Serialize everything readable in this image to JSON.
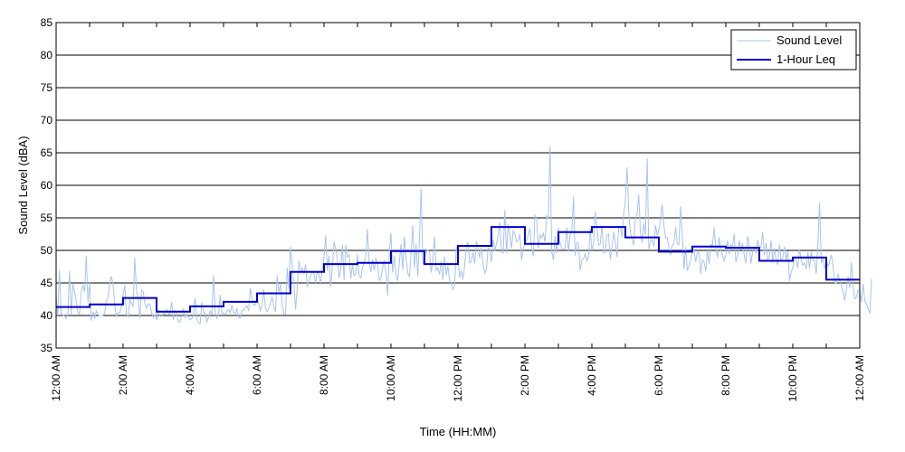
{
  "chart_data": {
    "type": "line",
    "title": "",
    "xlabel": "Time (HH:MM)",
    "ylabel": "Sound Level (dBA)",
    "xlim": [
      0,
      24
    ],
    "ylim": [
      35,
      85
    ],
    "y_ticks": [
      35,
      40,
      45,
      50,
      55,
      60,
      65,
      70,
      75,
      80,
      85
    ],
    "x_ticks": [
      0,
      2,
      4,
      6,
      8,
      10,
      12,
      14,
      16,
      18,
      20,
      22,
      24
    ],
    "x_tick_labels": [
      "12:00 AM",
      "2:00 AM",
      "4:00 AM",
      "6:00 AM",
      "8:00 AM",
      "10:00 AM",
      "12:00 PM",
      "2:00 PM",
      "4:00 PM",
      "6:00 PM",
      "8:00 PM",
      "10:00 PM",
      "12:00 AM"
    ],
    "grid": "horizontal",
    "legend_position": "top-right",
    "series": [
      {
        "name": "Sound Level",
        "color": "#a8c4f0",
        "x_step_hours": 0.05,
        "values": [
          43.1,
          39.8,
          47.0,
          40.3,
          40.1,
          39.9,
          39.5,
          40.3,
          46.8,
          40.2,
          44.8,
          43.7,
          42.2,
          40.5,
          40.2,
          43.6,
          44.7,
          43.6,
          49.2,
          42.0,
          45.1,
          39.2,
          40.6,
          39.5,
          40.7,
          40.1,
          40.0,
          40.0,
          40.0,
          40.4,
          42.3,
          42.7,
          44.9,
          46.0,
          44.9,
          41.5,
          39.9,
          40.4,
          40.4,
          41.4,
          43.2,
          44.6,
          40.3,
          39.8,
          42.4,
          41.8,
          41.4,
          48.9,
          43.8,
          42.7,
          39.6,
          43.9,
          43.7,
          41.8,
          41.1,
          41.8,
          41.7,
          40.5,
          39.7,
          40.2,
          39.3,
          40.9,
          39.9,
          39.9,
          40.4,
          40.2,
          40.9,
          40.4,
          40.1,
          42.1,
          39.3,
          40.7,
          40.4,
          39.0,
          39.0,
          40.0,
          41.1,
          39.7,
          40.2,
          39.7,
          39.3,
          39.5,
          40.0,
          42.7,
          39.5,
          38.9,
          38.7,
          42.0,
          40.5,
          40.4,
          39.0,
          39.7,
          40.7,
          40.2,
          46.2,
          40.7,
          39.6,
          40.1,
          43.2,
          40.3,
          40.4,
          40.1,
          40.6,
          40.9,
          40.4,
          41.6,
          40.5,
          40.3,
          41.1,
          39.7,
          39.6,
          40.8,
          40.8,
          41.3,
          41.5,
          40.7,
          44.2,
          42.7,
          41.6,
          41.6,
          43.1,
          41.7,
          40.7,
          41.6,
          44.0,
          41.2,
          40.6,
          41.2,
          41.9,
          42.9,
          41.4,
          40.6,
          46.1,
          43.6,
          44.8,
          41.6,
          40.3,
          40.2,
          47.3,
          44.1,
          50.6,
          47.5,
          45.0,
          40.9,
          44.1,
          48.4,
          46.5,
          47.3,
          46.4,
          47.8,
          44.4,
          45.3,
          46.0,
          46.8,
          46.4,
          45.0,
          46.8,
          46.3,
          45.0,
          47.2,
          49.0,
          52.3,
          46.9,
          49.2,
          44.4,
          47.6,
          51.4,
          50.2,
          48.6,
          45.8,
          47.2,
          50.9,
          45.4,
          50.8,
          49.0,
          49.3,
          45.7,
          47.8,
          46.1,
          46.4,
          49.4,
          46.1,
          45.8,
          47.4,
          48.2,
          49.2,
          53.3,
          48.1,
          46.7,
          48.6,
          46.9,
          48.8,
          47.9,
          45.4,
          45.8,
          47.3,
          48.5,
          46.5,
          43.0,
          49.8,
          52.7,
          46.6,
          49.2,
          46.2,
          45.3,
          48.2,
          51.0,
          47.0,
          52.1,
          48.7,
          46.6,
          45.9,
          49.7,
          53.8,
          47.3,
          51.0,
          46.0,
          52.0,
          59.5,
          47.9,
          48.9,
          49.7,
          50.1,
          49.7,
          46.6,
          48.5,
          52.1,
          46.9,
          47.3,
          46.3,
          48.4,
          45.5,
          49.1,
          46.2,
          47.6,
          45.4,
          45.0,
          44.0,
          44.5,
          50.6,
          49.4,
          45.8,
          46.9,
          45.5,
          47.6,
          50.8,
          51.2,
          48.1,
          48.3,
          49.7,
          48.0,
          51.4,
          50.3,
          48.9,
          50.5,
          47.8,
          46.5,
          47.0,
          50.4,
          50.2,
          48.2,
          51.7,
          49.9,
          51.1,
          52.3,
          54.3,
          49.7,
          49.6,
          56.2,
          49.5,
          54.0,
          52.5,
          50.3,
          53.0,
          52.5,
          51.3,
          51.6,
          52.5,
          48.5,
          50.2,
          51.2,
          51.6,
          52.3,
          53.4,
          50.5,
          49.1,
          55.4,
          54.9,
          50.3,
          52.3,
          51.9,
          52.6,
          51.3,
          55.3,
          54.8,
          66.0,
          49.8,
          48.5,
          52.2,
          49.6,
          53.5,
          51.1,
          50.3,
          50.1,
          50.3,
          53.5,
          49.8,
          52.4,
          52.9,
          58.3,
          49.2,
          51.2,
          51.0,
          46.9,
          48.6,
          48.7,
          49.5,
          48.4,
          49.1,
          53.3,
          50.0,
          51.2,
          55.9,
          53.9,
          50.8,
          51.0,
          53.9,
          49.6,
          49.7,
          52.3,
          52.5,
          48.6,
          50.4,
          52.8,
          51.3,
          49.0,
          53.6,
          53.7,
          52.0,
          55.4,
          57.8,
          62.8,
          56.0,
          52.8,
          51.7,
          50.8,
          55.1,
          55.6,
          58.6,
          52.8,
          51.2,
          54.2,
          52.4,
          64.2,
          50.2,
          51.4,
          51.7,
          50.6,
          53.9,
          52.4,
          53.0,
          54.9,
          57.1,
          53.9,
          51.9,
          52.0,
          50.3,
          49.3,
          50.8,
          51.0,
          53.6,
          51.0,
          50.9,
          56.8,
          52.4,
          47.1,
          50.5,
          46.9,
          47.6,
          48.6,
          49.8,
          50.1,
          48.2,
          49.7,
          49.6,
          46.4,
          48.5,
          48.2,
          46.8,
          50.0,
          47.9,
          50.9,
          50.7,
          53.5,
          50.5,
          48.9,
          52.0,
          50.0,
          49.3,
          48.4,
          49.3,
          51.5,
          49.4,
          50.8,
          50.6,
          52.5,
          48.2,
          49.1,
          51.5,
          50.1,
          51.1,
          49.2,
          48.0,
          52.2,
          51.0,
          48.0,
          49.8,
          50.5,
          49.6,
          51.6,
          50.5,
          50.5,
          52.8,
          49.3,
          51.1,
          48.6,
          49.0,
          51.6,
          48.1,
          50.3,
          48.7,
          47.8,
          50.9,
          48.4,
          48.8,
          50.6,
          48.5,
          49.9,
          45.3,
          46.6,
          47.4,
          48.7,
          48.5,
          47.3,
          50.2,
          48.5,
          47.7,
          48.1,
          47.1,
          49.7,
          47.2,
          49.8,
          48.4,
          48.5,
          46.4,
          51.1,
          57.3,
          48.0,
          48.8,
          47.1,
          48.7,
          47.6,
          48.2,
          49.3,
          47.7,
          45.1,
          44.9,
          46.4,
          45.4,
          44.7,
          43.7,
          42.3,
          43.9,
          46.0,
          44.2,
          48.2,
          44.6,
          42.6,
          42.8,
          43.9,
          43.8,
          42.1,
          44.9,
          42.2,
          41.8,
          41.0,
          40.3,
          45.6
        ]
      },
      {
        "name": "1-Hour Leq",
        "color": "#0000cc",
        "hourly_values": [
          41.3,
          41.7,
          42.7,
          40.6,
          41.4,
          42.1,
          43.4,
          46.7,
          47.9,
          48.1,
          49.9,
          47.9,
          50.7,
          53.6,
          51.0,
          52.8,
          53.6,
          52.0,
          49.8,
          50.6,
          50.4,
          48.4,
          48.9,
          45.5
        ]
      }
    ]
  }
}
